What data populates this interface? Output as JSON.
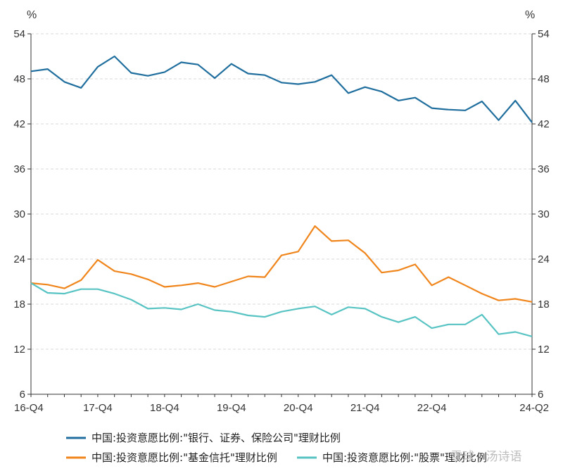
{
  "chart_data": {
    "type": "line",
    "y_unit_left": "%",
    "y_unit_right": "%",
    "ylim": [
      6,
      54
    ],
    "yticks": [
      6,
      12,
      18,
      24,
      30,
      36,
      42,
      48,
      54
    ],
    "x_tick_labels": [
      "16-Q4",
      "17-Q4",
      "18-Q4",
      "19-Q4",
      "20-Q4",
      "21-Q4",
      "22-Q4",
      "24-Q2"
    ],
    "x_tick_positions": [
      0,
      4,
      8,
      12,
      16,
      20,
      24,
      30
    ],
    "grid": "horizontal dashed",
    "legend_position": "bottom",
    "series": [
      {
        "name": "中国:投资意愿比例:\"银行、证券、保险公司\"理财比例",
        "color": "#1f6e9e",
        "values": [
          49.0,
          49.3,
          47.6,
          46.8,
          49.6,
          51.0,
          48.8,
          48.4,
          48.9,
          50.2,
          49.9,
          48.1,
          50.0,
          48.7,
          48.5,
          47.5,
          47.3,
          47.6,
          48.5,
          46.1,
          46.9,
          46.3,
          45.1,
          45.5,
          44.1,
          43.9,
          43.8,
          45.0,
          42.5,
          45.1,
          42.2
        ]
      },
      {
        "name": "中国:投资意愿比例:\"基金信托\"理财比例",
        "color": "#f0851c",
        "values": [
          20.8,
          20.6,
          20.1,
          21.2,
          23.9,
          22.4,
          22.0,
          21.3,
          20.3,
          20.5,
          20.8,
          20.3,
          21.0,
          21.7,
          21.6,
          24.5,
          25.0,
          28.4,
          26.4,
          26.5,
          24.8,
          22.2,
          22.5,
          23.3,
          20.5,
          21.6,
          20.5,
          19.4,
          18.5,
          18.7,
          18.3
        ]
      },
      {
        "name": "中国:投资意愿比例:\"股票\"理财比例",
        "color": "#58c3c3",
        "values": [
          20.8,
          19.5,
          19.4,
          20.0,
          20.0,
          19.4,
          18.6,
          17.4,
          17.5,
          17.3,
          18.0,
          17.2,
          17.0,
          16.5,
          16.3,
          17.0,
          17.4,
          17.7,
          16.6,
          17.6,
          17.4,
          16.3,
          15.6,
          16.3,
          14.8,
          15.3,
          15.3,
          16.6,
          14.0,
          14.3,
          13.7
        ]
      }
    ]
  },
  "watermark": "雪球 : 汤诗语"
}
